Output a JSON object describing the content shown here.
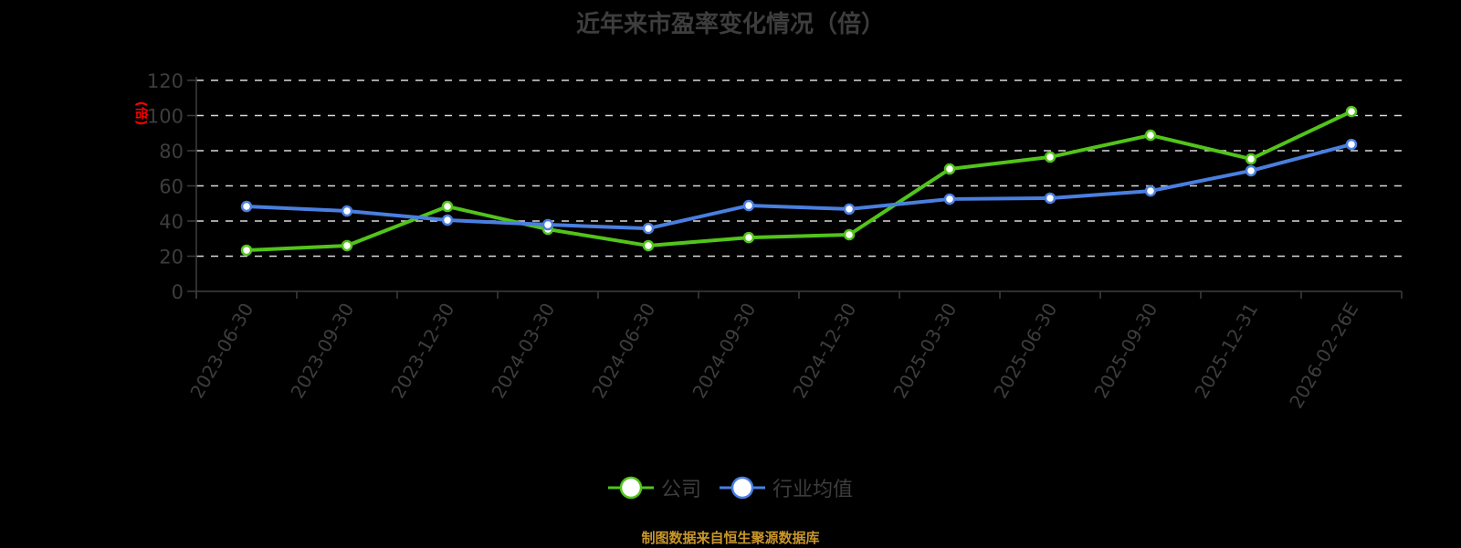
{
  "title": "近年来市盈率变化情况（倍）",
  "footer": "制图数据来自恒生聚源数据库",
  "legend": [
    {
      "label": "公司",
      "color": "#52c41a"
    },
    {
      "label": "行业均值",
      "color": "#4a7fe0"
    }
  ],
  "y_axis": {
    "unit_label": "(倍)",
    "ticks": [
      "0",
      "20",
      "40",
      "60",
      "80",
      "100",
      "120"
    ]
  },
  "chart_data": {
    "type": "line",
    "title": "近年来市盈率变化情况（倍）",
    "xlabel": "",
    "ylabel": "倍",
    "ylim": [
      0,
      120
    ],
    "grid": true,
    "legend_position": "bottom",
    "categories": [
      "2023-06-30",
      "2023-09-30",
      "2023-12-30",
      "2024-03-30",
      "2024-06-30",
      "2024-09-30",
      "2024-12-30",
      "2025-03-30",
      "2025-06-30",
      "2025-09-30",
      "2025-12-31",
      "2026-02-26E"
    ],
    "series": [
      {
        "name": "公司",
        "color": "#52c41a",
        "values": [
          23.4,
          26.0,
          48.3,
          35.3,
          26.0,
          30.6,
          32.2,
          69.6,
          76.4,
          88.8,
          75.3,
          102.3
        ]
      },
      {
        "name": "行业均值",
        "color": "#4a7fe0",
        "values": [
          48.3,
          45.7,
          40.5,
          37.9,
          35.8,
          48.8,
          46.8,
          52.5,
          53.0,
          57.1,
          68.6,
          83.6
        ]
      }
    ]
  }
}
